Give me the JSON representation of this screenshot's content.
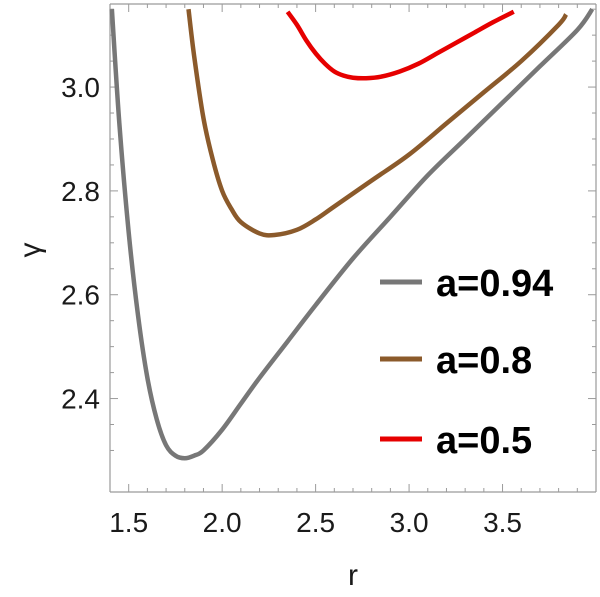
{
  "chart_data": {
    "type": "line",
    "title": "",
    "xlabel": "r",
    "ylabel": "γ",
    "xlim": [
      1.4,
      4.0
    ],
    "ylim": [
      2.22,
      3.16
    ],
    "x_ticks": [
      1.5,
      2.0,
      2.5,
      3.0,
      3.5
    ],
    "x_tick_labels": [
      "1.5",
      "2.0",
      "2.5",
      "3.0",
      "3.5"
    ],
    "y_ticks": [
      2.4,
      2.6,
      2.8,
      3.0
    ],
    "y_tick_labels": [
      "2.4",
      "2.6",
      "2.8",
      "3.0"
    ],
    "grid": false,
    "legend_position": "right",
    "series": [
      {
        "name": "a=0.94",
        "color": "#777777",
        "x": [
          1.41,
          1.45,
          1.5,
          1.55,
          1.6,
          1.65,
          1.7,
          1.75,
          1.8,
          1.85,
          1.9,
          2.0,
          2.1,
          2.2,
          2.35,
          2.5,
          2.7,
          2.9,
          3.1,
          3.3,
          3.5,
          3.7,
          3.9,
          3.98
        ],
        "y": [
          3.15,
          2.93,
          2.72,
          2.56,
          2.44,
          2.36,
          2.31,
          2.29,
          2.285,
          2.29,
          2.3,
          2.34,
          2.39,
          2.44,
          2.51,
          2.58,
          2.67,
          2.75,
          2.83,
          2.9,
          2.97,
          3.04,
          3.11,
          3.15
        ]
      },
      {
        "name": "a=0.8",
        "color": "#8b5a2b",
        "x": [
          1.82,
          1.85,
          1.9,
          1.95,
          2.0,
          2.05,
          2.1,
          2.2,
          2.28,
          2.4,
          2.5,
          2.6,
          2.8,
          3.0,
          3.2,
          3.4,
          3.6,
          3.8,
          3.84
        ],
        "y": [
          3.15,
          3.06,
          2.94,
          2.86,
          2.8,
          2.765,
          2.74,
          2.718,
          2.715,
          2.725,
          2.745,
          2.77,
          2.82,
          2.87,
          2.93,
          2.99,
          3.05,
          3.12,
          3.14
        ]
      },
      {
        "name": "a=0.5",
        "color": "#e60000",
        "x": [
          2.35,
          2.4,
          2.45,
          2.5,
          2.55,
          2.6,
          2.65,
          2.7,
          2.77,
          2.85,
          2.95,
          3.05,
          3.15,
          3.25,
          3.35,
          3.45,
          3.56
        ],
        "y": [
          3.145,
          3.12,
          3.09,
          3.065,
          3.045,
          3.03,
          3.022,
          3.018,
          3.017,
          3.02,
          3.03,
          3.045,
          3.065,
          3.085,
          3.105,
          3.125,
          3.145
        ]
      }
    ]
  }
}
